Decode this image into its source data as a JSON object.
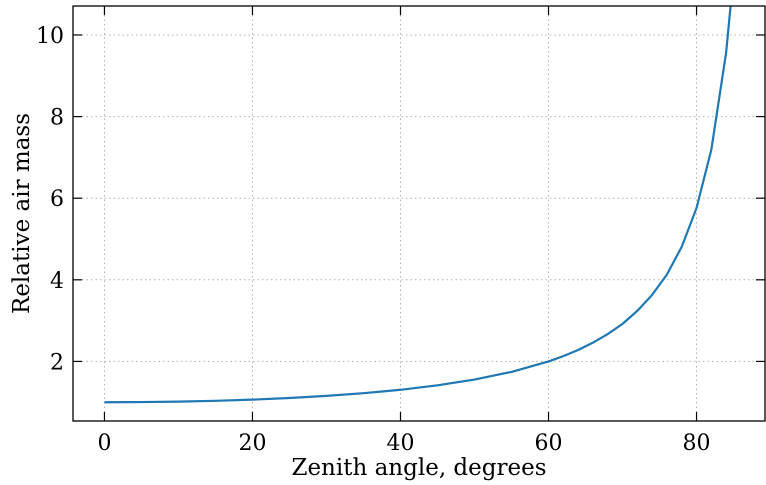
{
  "chart_data": {
    "type": "line",
    "title": "",
    "xlabel": "Zenith angle, degrees",
    "ylabel": "Relative air mass",
    "xlim": [
      -4.25,
      89.25
    ],
    "ylim": [
      0.54,
      10.71
    ],
    "xticks": [
      0,
      20,
      40,
      60,
      80
    ],
    "yticks": [
      2,
      4,
      6,
      8,
      10
    ],
    "grid": true,
    "grid_style": "dotted",
    "ticks_direction": "in",
    "ticks_on_all_sides": true,
    "series": [
      {
        "color": "#1f77b4",
        "x": [
          0,
          5,
          10,
          15,
          20,
          25,
          30,
          35,
          40,
          45,
          50,
          55,
          60,
          62,
          64,
          66,
          68,
          70,
          72,
          74,
          76,
          78,
          80,
          82,
          84,
          85
        ],
        "y": [
          1.0,
          1.004,
          1.015,
          1.035,
          1.064,
          1.103,
          1.155,
          1.221,
          1.305,
          1.414,
          1.556,
          1.743,
          2.0,
          2.13,
          2.28,
          2.46,
          2.67,
          2.92,
          3.24,
          3.63,
          4.13,
          4.81,
          5.76,
          7.19,
          9.57,
          11.47
        ]
      }
    ]
  }
}
